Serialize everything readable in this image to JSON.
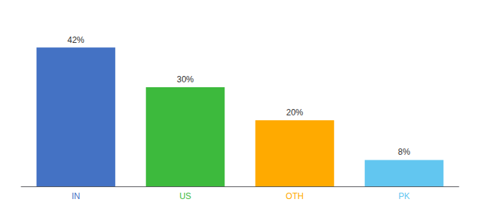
{
  "chart_data": {
    "type": "bar",
    "categories": [
      "IN",
      "US",
      "OTH",
      "PK"
    ],
    "values": [
      42,
      30,
      20,
      8
    ],
    "value_labels": [
      "42%",
      "30%",
      "20%",
      "8%"
    ],
    "colors": [
      "#4472c4",
      "#3dba3d",
      "#ffaa00",
      "#62c6f0"
    ],
    "ylim": [
      0,
      50
    ],
    "data_labels": true,
    "tick_labels": "x",
    "grid": false
  }
}
